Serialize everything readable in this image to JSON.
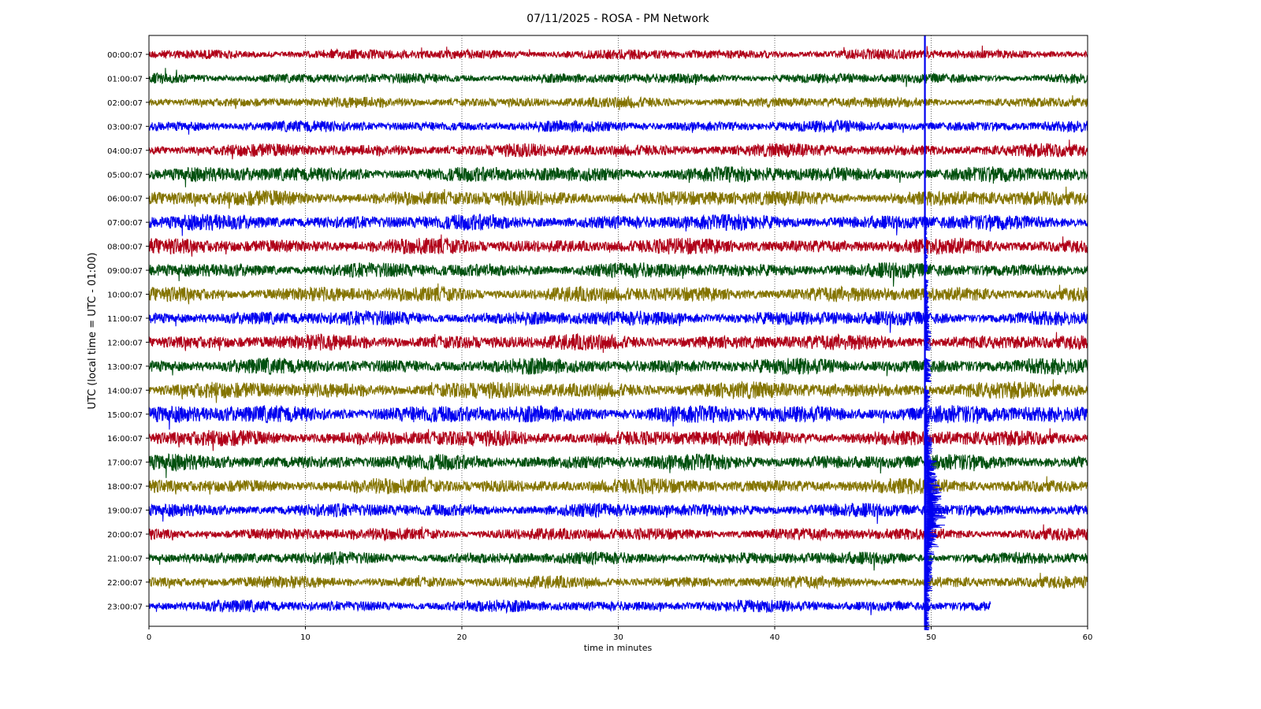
{
  "chart_data": {
    "type": "line",
    "title": "07/11/2025 - ROSA - PM Network",
    "xlabel": "time in minutes",
    "ylabel": "UTC (local time = UTC - 01:00)",
    "xlim": [
      0,
      60
    ],
    "x_ticks": [
      0,
      10,
      20,
      30,
      40,
      50,
      60
    ],
    "grid": "vertical dotted",
    "series_colors": [
      "#b00018",
      "#00500e",
      "#847400",
      "#0000f0"
    ],
    "series": [
      {
        "name": "00:00:07",
        "amplitude": 0.35,
        "end_minute": 60
      },
      {
        "name": "01:00:07",
        "amplitude": 0.35,
        "end_minute": 60
      },
      {
        "name": "02:00:07",
        "amplitude": 0.4,
        "end_minute": 60
      },
      {
        "name": "03:00:07",
        "amplitude": 0.45,
        "end_minute": 60
      },
      {
        "name": "04:00:07",
        "amplitude": 0.6,
        "end_minute": 60
      },
      {
        "name": "05:00:07",
        "amplitude": 0.8,
        "end_minute": 60
      },
      {
        "name": "06:00:07",
        "amplitude": 0.8,
        "end_minute": 60
      },
      {
        "name": "07:00:07",
        "amplitude": 0.8,
        "end_minute": 60
      },
      {
        "name": "08:00:07",
        "amplitude": 0.8,
        "end_minute": 60
      },
      {
        "name": "09:00:07",
        "amplitude": 0.75,
        "end_minute": 60
      },
      {
        "name": "10:00:07",
        "amplitude": 0.8,
        "end_minute": 60
      },
      {
        "name": "11:00:07",
        "amplitude": 0.75,
        "end_minute": 60
      },
      {
        "name": "12:00:07",
        "amplitude": 0.8,
        "end_minute": 60
      },
      {
        "name": "13:00:07",
        "amplitude": 0.8,
        "end_minute": 60
      },
      {
        "name": "14:00:07",
        "amplitude": 0.9,
        "end_minute": 60
      },
      {
        "name": "15:00:07",
        "amplitude": 1.0,
        "end_minute": 60
      },
      {
        "name": "16:00:07",
        "amplitude": 0.85,
        "end_minute": 60
      },
      {
        "name": "17:00:07",
        "amplitude": 0.8,
        "end_minute": 60
      },
      {
        "name": "18:00:07",
        "amplitude": 0.75,
        "end_minute": 60
      },
      {
        "name": "19:00:07",
        "amplitude": 0.65,
        "end_minute": 60
      },
      {
        "name": "20:00:07",
        "amplitude": 0.55,
        "end_minute": 60
      },
      {
        "name": "21:00:07",
        "amplitude": 0.55,
        "end_minute": 60
      },
      {
        "name": "22:00:07",
        "amplitude": 0.5,
        "end_minute": 60
      },
      {
        "name": "23:00:07",
        "amplitude": 0.5,
        "end_minute": 53.8
      }
    ],
    "event": {
      "start_minute": 49.6,
      "trace_color": "#0000f0",
      "start_row": 0,
      "end_row": 23
    }
  }
}
